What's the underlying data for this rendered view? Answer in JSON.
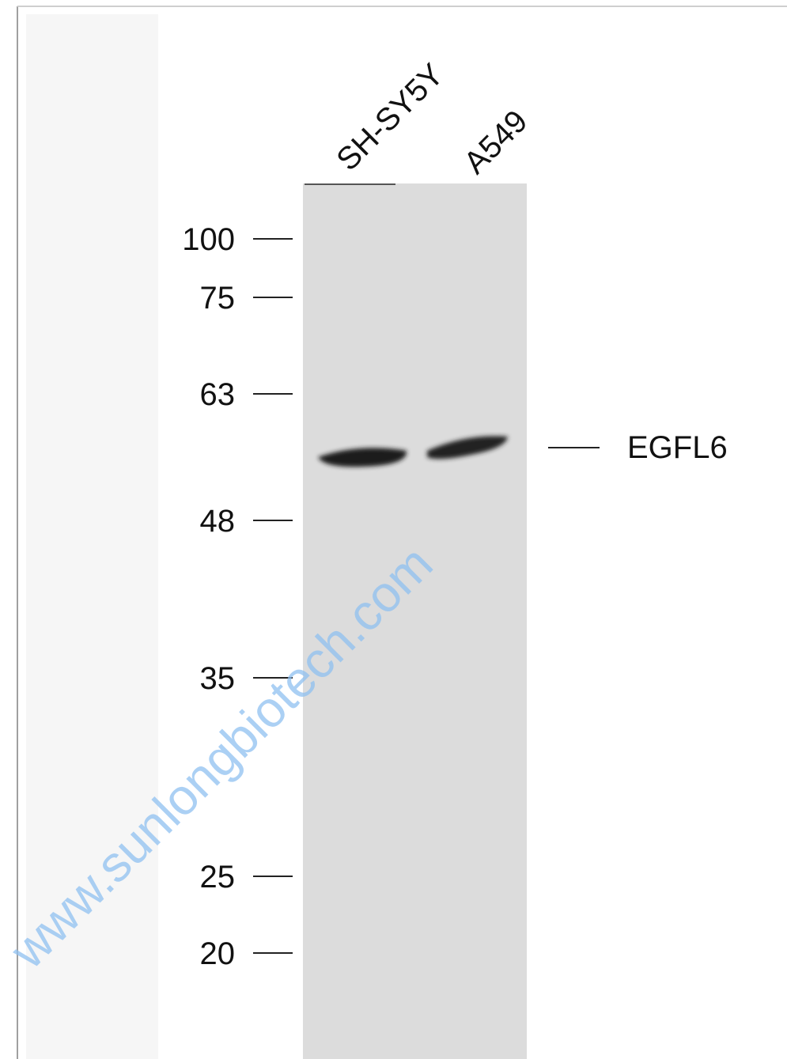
{
  "lanes": [
    "SH-SY5Y",
    "A549"
  ],
  "markers": [
    "100",
    "75",
    "63",
    "48",
    "35",
    "25",
    "20"
  ],
  "band_label": "EGFL6",
  "watermark": "www.sunlongbiotech.com"
}
